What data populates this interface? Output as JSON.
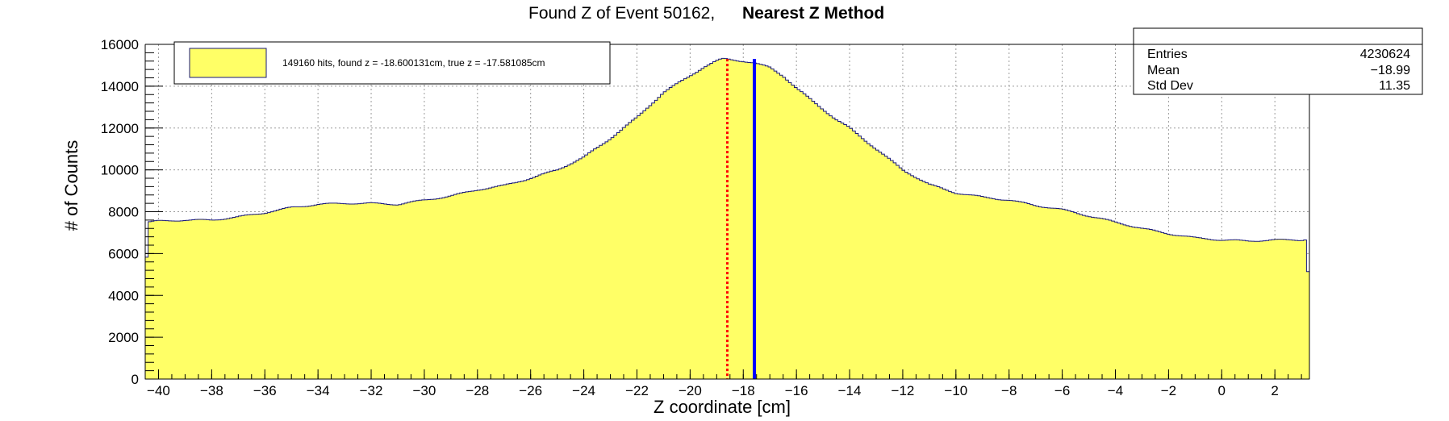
{
  "title": {
    "main": "Found Z of Event 50162,",
    "method": "Nearest Z Method"
  },
  "legend": {
    "label": "149160 hits, found z = -18.600131cm, true z = -17.581085cm",
    "fill_color": "#ffff66",
    "border_color": "#1a1a7a"
  },
  "stats": {
    "entries_label": "Entries",
    "entries_value": "4230624",
    "mean_label": "Mean",
    "mean_value": "−18.99",
    "stddev_label": "Std Dev",
    "stddev_value": "11.35"
  },
  "chart_data": {
    "type": "area",
    "title": "Found Z of Event 50162,   Nearest Z Method",
    "xlabel": "Z coordinate [cm]",
    "ylabel": "# of Counts",
    "xlim": [
      -40.5,
      3.3
    ],
    "ylim": [
      0,
      16000
    ],
    "x_ticks": [
      -40,
      -38,
      -36,
      -34,
      -32,
      -30,
      -28,
      -26,
      -24,
      -22,
      -20,
      -18,
      -16,
      -14,
      -12,
      -10,
      -8,
      -6,
      -4,
      -2,
      0,
      2
    ],
    "y_ticks": [
      0,
      2000,
      4000,
      6000,
      8000,
      10000,
      12000,
      14000,
      16000
    ],
    "grid": true,
    "legend_position": "top-left",
    "fill_color": "#ffff66",
    "line_color": "#1a1a7a",
    "series": [
      {
        "x": [
          -40.5,
          -40.4,
          -40,
          -39,
          -38,
          -37,
          -36,
          -35,
          -34,
          -33,
          -32,
          -31,
          -30,
          -29,
          -28,
          -27,
          -26,
          -25,
          -24,
          -23,
          -22,
          -21,
          -20,
          -19.5,
          -19,
          -18.8,
          -18.6,
          -18.3,
          -18,
          -17.6,
          -17,
          -16.5,
          -16,
          -15.5,
          -15,
          -14.5,
          -14,
          -13,
          -12,
          -11,
          -10,
          -9,
          -8,
          -7,
          -6,
          -5,
          -4,
          -3,
          -2,
          -1,
          0,
          1,
          2,
          3,
          3.2,
          3.3
        ],
        "y": [
          3800,
          7500,
          7550,
          7600,
          7600,
          7750,
          7950,
          8200,
          8350,
          8400,
          8400,
          8350,
          8550,
          8750,
          9050,
          9250,
          9600,
          10000,
          10600,
          11500,
          12500,
          13700,
          14500,
          14900,
          15200,
          15300,
          15300,
          15250,
          15200,
          15100,
          14900,
          14500,
          13900,
          13400,
          12900,
          12400,
          12000,
          11000,
          10000,
          9300,
          8900,
          8700,
          8550,
          8300,
          8100,
          7800,
          7500,
          7200,
          6950,
          6750,
          6650,
          6600,
          6650,
          6650,
          6700,
          3300
        ]
      }
    ],
    "markers": [
      {
        "label": "found z",
        "x": -18.600131,
        "color": "#ff0000",
        "style": "dotted"
      },
      {
        "label": "true z",
        "x": -17.581085,
        "color": "#0000ff",
        "style": "solid"
      }
    ]
  }
}
